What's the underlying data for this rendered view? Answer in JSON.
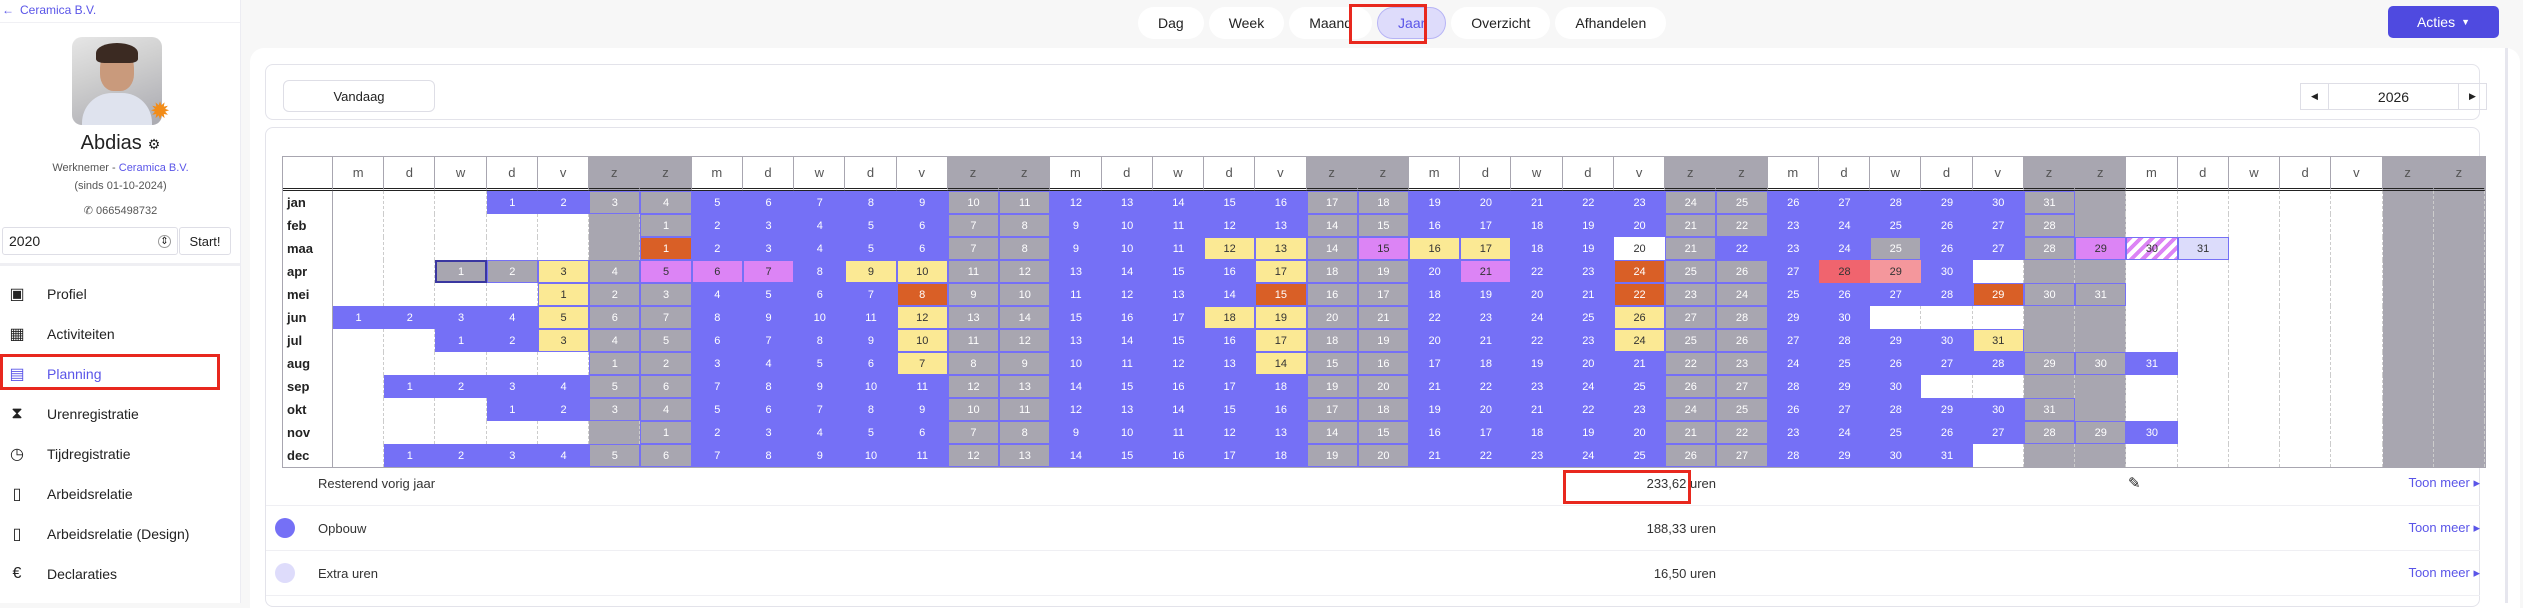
{
  "sidebar": {
    "back_label": "Ceramica B.V.",
    "user_name": "Abdias",
    "role": "Werknemer - ",
    "company": "Ceramica B.V.",
    "since": "(sinds 01-10-2024)",
    "phone": "0665498732",
    "year_input": "2020",
    "start_button": "Start!",
    "items": [
      {
        "label": "Profiel",
        "icon": "id-card-icon",
        "glyph": "▣"
      },
      {
        "label": "Activiteiten",
        "icon": "table-icon",
        "glyph": "▦"
      },
      {
        "label": "Planning",
        "icon": "calendar-icon",
        "glyph": "▤",
        "active": true
      },
      {
        "label": "Urenregistratie",
        "icon": "hourglass-icon",
        "glyph": "⧗"
      },
      {
        "label": "Tijdregistratie",
        "icon": "stopwatch-icon",
        "glyph": "◷"
      },
      {
        "label": "Arbeidsrelatie",
        "icon": "document-icon",
        "glyph": "▯"
      },
      {
        "label": "Arbeidsrelatie (Design)",
        "icon": "document-icon",
        "glyph": "▯"
      },
      {
        "label": "Declaraties",
        "icon": "euro-icon",
        "glyph": "€"
      }
    ]
  },
  "topnav": {
    "tabs": [
      {
        "label": "Dag"
      },
      {
        "label": "Week"
      },
      {
        "label": "Maand"
      },
      {
        "label": "Jaar",
        "active": true
      },
      {
        "label": "Overzicht"
      },
      {
        "label": "Afhandelen"
      }
    ],
    "actions_label": "Acties"
  },
  "toolbar": {
    "today_label": "Vandaag",
    "year": "2026"
  },
  "calendar": {
    "year": 2026,
    "weekday_headers": [
      "m",
      "d",
      "w",
      "d",
      "v",
      "z",
      "z"
    ],
    "months": [
      "jan",
      "feb",
      "maa",
      "apr",
      "mei",
      "jun",
      "jul",
      "aug",
      "sep",
      "okt",
      "nov",
      "dec"
    ],
    "today": {
      "month": 4,
      "day": 1
    },
    "colors": {
      "workday": "#7570f6",
      "weekend": "#a8a6b0",
      "yellow": "#fbe994",
      "orange": "#d95f26",
      "pink": "#dc84f5",
      "red": "#f0646e",
      "lightred": "#f4979c",
      "lavender": "#dcdcfb",
      "white": "#ffffff"
    },
    "marked_days": {
      "3": {
        "1": "orange",
        "12": "yellow",
        "13": "yellow",
        "15": "pink",
        "16": "yellow",
        "17": "yellow",
        "20": "white",
        "22": "blue",
        "25": "gray",
        "29": "pink",
        "30": "hatch",
        "31": "lavender"
      },
      "4": {
        "1": "gray",
        "2": "gray",
        "3": "yellow",
        "5": "pink",
        "6": "pink",
        "7": "pink",
        "9": "yellow",
        "10": "yellow",
        "17": "yellow",
        "21": "pink",
        "24": "orange",
        "28": "red",
        "29": "lightred"
      },
      "5": {
        "1": "yellow",
        "8": "orange",
        "15": "orange",
        "22": "orange",
        "29": "orange"
      },
      "6": {
        "5": "yellow",
        "12": "yellow",
        "18": "yellow",
        "19": "yellow",
        "26": "yellow"
      },
      "7": {
        "3": "yellow",
        "10": "yellow",
        "17": "yellow",
        "24": "yellow",
        "31": "yellow"
      },
      "8": {
        "7": "yellow",
        "14": "yellow"
      }
    }
  },
  "summary": [
    {
      "label": "Resterend vorig jaar",
      "value": "233,62 uren",
      "editable": true,
      "more": "Toon meer ▸"
    },
    {
      "label": "Opbouw",
      "value": "188,33 uren",
      "dot": "#7570f6",
      "more": "Toon meer ▸"
    },
    {
      "label": "Extra uren",
      "value": "16,50 uren",
      "dot": "#dedcfb",
      "more": "Toon meer ▸"
    }
  ]
}
